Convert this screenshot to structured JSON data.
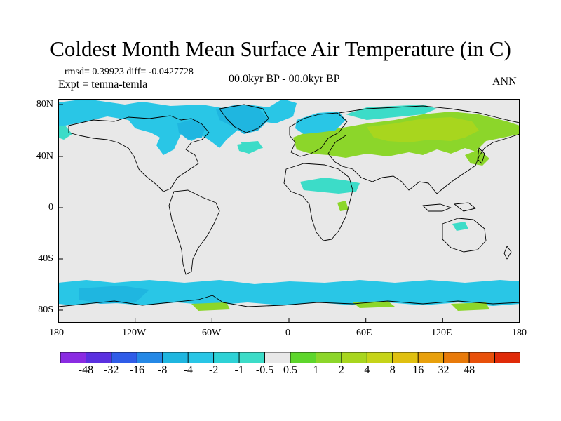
{
  "title": "Coldest Month Mean Surface Air Temperature (in C)",
  "stats": {
    "rmsd_label": "rmsd= 0.39923 diff= -0.0427728",
    "expt_label": "Expt = temna-temla",
    "period_label": "00.0kyr BP - 00.0kyr BP",
    "season_label": "ANN"
  },
  "map": {
    "projection": "cylindrical equidistant",
    "lon_ticks": [
      "180",
      "120W",
      "60W",
      "0",
      "60E",
      "120E",
      "180"
    ],
    "lat_ticks": [
      "80N",
      "40N",
      "0",
      "40S",
      "80S"
    ],
    "background_color": "#e8e8e8",
    "coast_color": "#000000",
    "anomaly_regions": [
      {
        "name": "north-america-arctic-cooling",
        "band": "-1",
        "color": "#29c6e6"
      },
      {
        "name": "greenland-cooling",
        "band": "-2",
        "color": "#1fb6e0"
      },
      {
        "name": "arctic-coast-cooling",
        "band": "-0.5",
        "color": "#3cdcc8"
      },
      {
        "name": "eurasia-warming",
        "band": "1",
        "color": "#8cd62a"
      },
      {
        "name": "siberia-warming",
        "band": "2",
        "color": "#a8d61e"
      },
      {
        "name": "north-africa-cooling",
        "band": "-0.5",
        "color": "#3cdcc8"
      },
      {
        "name": "southern-ocean-cooling",
        "band": "-1",
        "color": "#29c6e6"
      },
      {
        "name": "antarctic-coast-warming",
        "band": "1",
        "color": "#8cd62a"
      }
    ]
  },
  "colorbar": {
    "colors": [
      "#8a2be2",
      "#5a30e0",
      "#2f5ce8",
      "#2488e6",
      "#1fb6e0",
      "#29c6e6",
      "#2ed2d6",
      "#3cdcc8",
      "#e8e8e8",
      "#5ed62c",
      "#8cd62a",
      "#a8d61e",
      "#c6d418",
      "#e0c010",
      "#e8a00c",
      "#e87a0a",
      "#e8500a",
      "#e02a08"
    ],
    "labels": [
      "-48",
      "-32",
      "-16",
      "-8",
      "-4",
      "-2",
      "-1",
      "-0.5",
      "0.5",
      "1",
      "2",
      "4",
      "8",
      "16",
      "32",
      "48"
    ]
  }
}
